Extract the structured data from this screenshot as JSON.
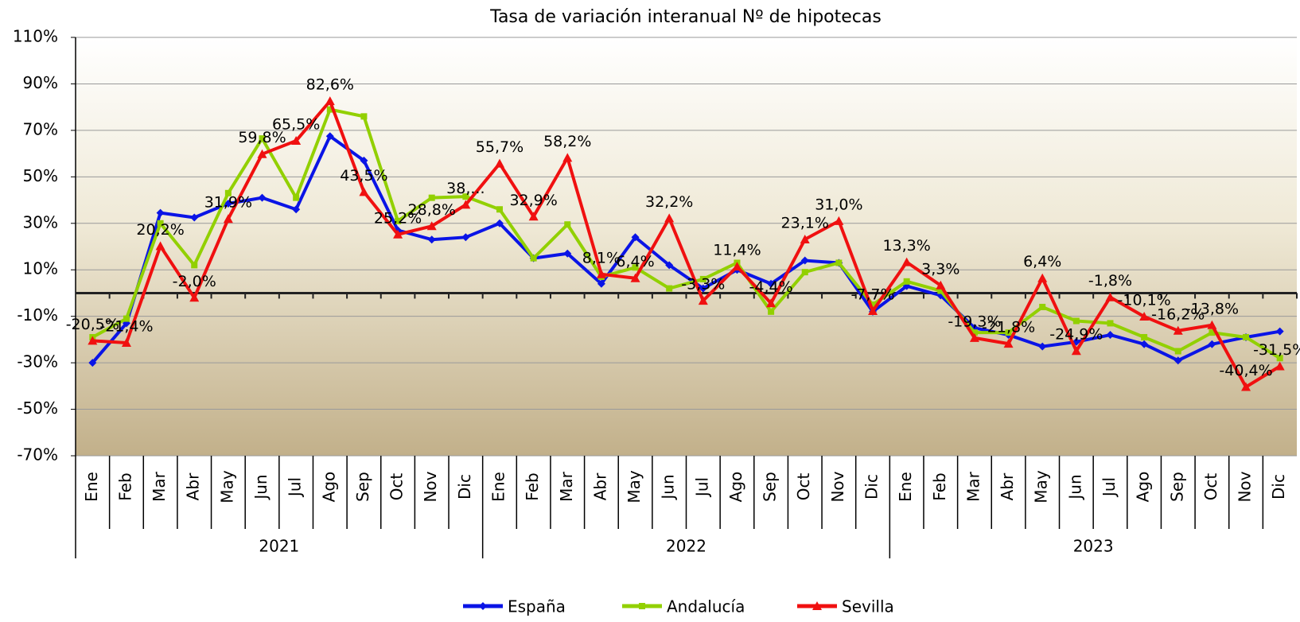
{
  "chart_data": {
    "type": "line",
    "title": "Tasa de variación interanual Nº de hipotecas",
    "categories": [
      "Ene",
      "Feb",
      "Mar",
      "Abr",
      "May",
      "Jun",
      "Jul",
      "Ago",
      "Sep",
      "Oct",
      "Nov",
      "Dic",
      "Ene",
      "Feb",
      "Mar",
      "Abr",
      "May",
      "Jun",
      "Jul",
      "Ago",
      "Sep",
      "Oct",
      "Nov",
      "Dic",
      "Ene",
      "Feb",
      "Mar",
      "Abr",
      "May",
      "Jun",
      "Jul",
      "Ago",
      "Sep",
      "Oct",
      "Nov",
      "Dic"
    ],
    "years": [
      "2021",
      "2022",
      "2023"
    ],
    "series": [
      {
        "name": "España",
        "color": "#0a14e6",
        "marker": "diamond",
        "values": [
          -30,
          -13,
          34.5,
          32.5,
          38.5,
          41,
          36,
          67.5,
          57,
          27,
          23,
          24,
          30,
          15,
          17,
          4,
          24,
          12,
          2,
          10,
          4,
          14,
          13,
          -8,
          3,
          -1,
          -15,
          -18,
          -23,
          -21,
          -18,
          -22,
          -29,
          -22,
          -19,
          -16.5
        ]
      },
      {
        "name": "Andalucía",
        "color": "#92d000",
        "marker": "square",
        "values": [
          -19,
          -11,
          30,
          12,
          43,
          66.5,
          41,
          79,
          76,
          31,
          41,
          41.5,
          36,
          15,
          29.5,
          7,
          11,
          2,
          6,
          13,
          -8,
          9,
          13,
          -5,
          5,
          1,
          -17,
          -17,
          -6,
          -12,
          -13,
          -19,
          -25,
          -17,
          -19,
          -28
        ]
      },
      {
        "name": "Sevilla",
        "color": "#f01010",
        "marker": "triangle",
        "values": [
          -20.5,
          -21.4,
          20.2,
          -2,
          31.9,
          59.8,
          65.5,
          82.6,
          43.5,
          25.2,
          28.8,
          38,
          55.7,
          32.9,
          58.2,
          8.1,
          6.4,
          32.2,
          -3.3,
          11.4,
          -4.4,
          23.1,
          31,
          -7.7,
          13.3,
          3.3,
          -19.3,
          -21.8,
          6.4,
          -24.9,
          -1.8,
          -10.1,
          -16.2,
          -13.8,
          -40.4,
          -31.5
        ],
        "value_labels": [
          "-20,5%",
          "-21,4%",
          "20,2%",
          "-2,0%",
          "31,9%",
          "59,8%",
          "65,5%",
          "82,6%",
          "43,5%",
          "25,2%",
          "28,8%",
          "38,...",
          "55,7%",
          "32,9%",
          "58,2%",
          "8,1%",
          "6,4%",
          "32,2%",
          "-3,3%",
          "11,4%",
          "-4,4%",
          "23,1%",
          "31,0%",
          "-7,7%",
          "13,3%",
          "3,3%",
          "-19,3%",
          "-21,8%",
          "6,4%",
          "-24,9%",
          "-1,8%",
          "-10,1%",
          "-16,2%",
          "-13,8%",
          "-40,4%",
          "-31,5%"
        ]
      }
    ],
    "ylim": [
      -70,
      110
    ],
    "yticks": [
      {
        "value": -70,
        "label": "-70%"
      },
      {
        "value": -50,
        "label": "-50%"
      },
      {
        "value": -30,
        "label": "-30%"
      },
      {
        "value": -10,
        "label": "-10%"
      },
      {
        "value": 10,
        "label": "10%"
      },
      {
        "value": 30,
        "label": "30%"
      },
      {
        "value": 50,
        "label": "50%"
      },
      {
        "value": 70,
        "label": "70%"
      },
      {
        "value": 90,
        "label": "90%"
      },
      {
        "value": 110,
        "label": "110%"
      }
    ],
    "grid": true,
    "legend": "bottom"
  }
}
